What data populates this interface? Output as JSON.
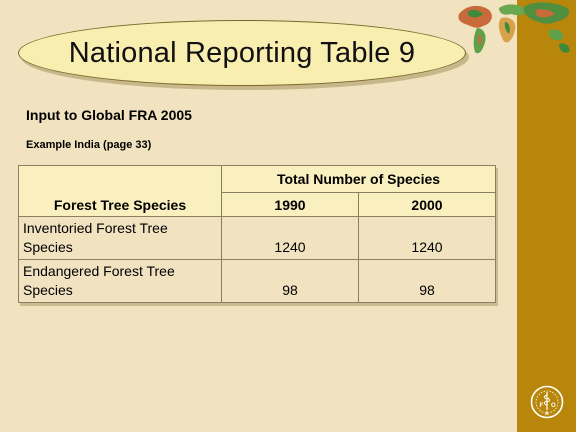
{
  "title": "National Reporting Table 9",
  "subtitle": "Input to Global FRA 2005",
  "example": "Example India (page 33)",
  "table": {
    "species_header": "Forest Tree Species",
    "group_header": "Total Number of Species",
    "years": [
      "1990",
      "2000"
    ],
    "rows": [
      {
        "label": "Inventoried Forest Tree Species",
        "values": [
          "1240",
          "1240"
        ]
      },
      {
        "label": "Endangered Forest Tree Species",
        "values": [
          "98",
          "98"
        ]
      }
    ]
  },
  "icons": {
    "banner": "world-map-icon",
    "logo": "fao-logo-icon"
  },
  "colors": {
    "background": "#f1e3c0",
    "sidebar": "#b8860b",
    "title_fill": "#f8eeb0",
    "header_fill": "#faf0bf"
  }
}
